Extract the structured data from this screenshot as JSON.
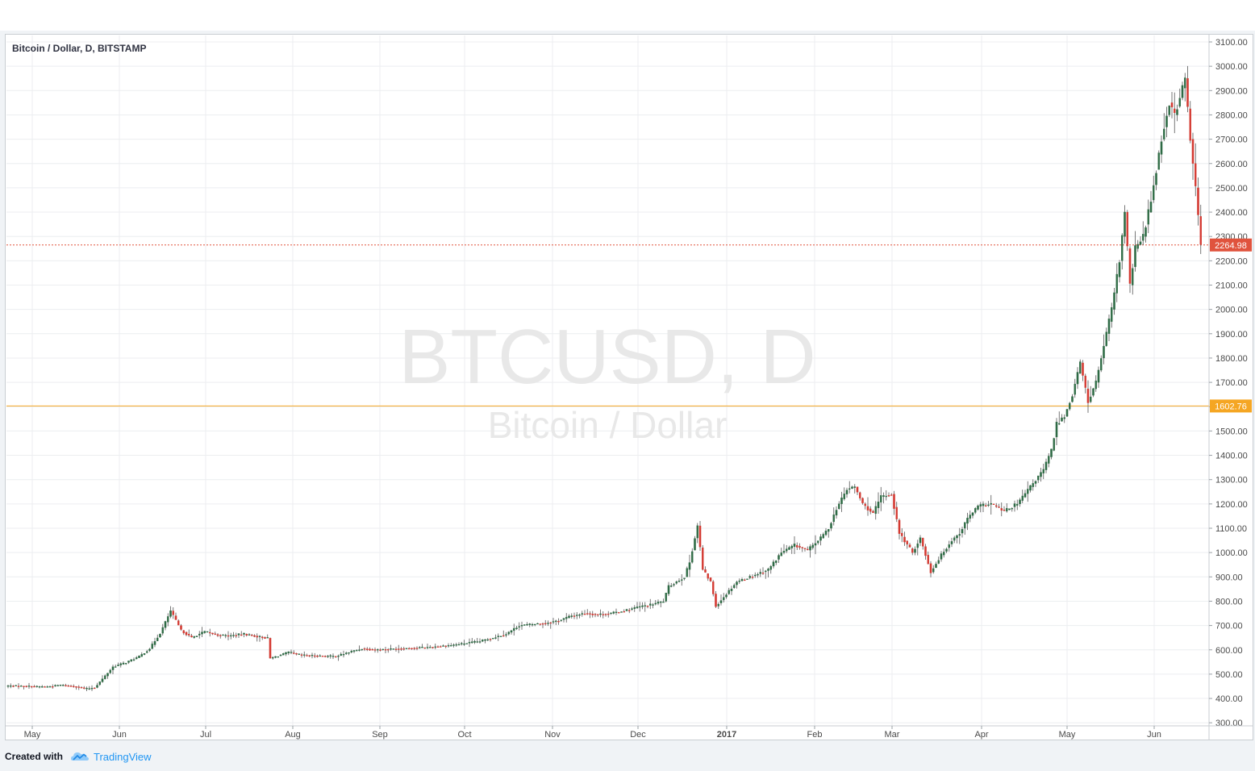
{
  "header": {
    "symbol_label": "Bitcoin / Dollar, D, BITSTAMP"
  },
  "watermark": {
    "ticker": "BTCUSD, D",
    "name": "Bitcoin / Dollar"
  },
  "footer": {
    "created_with": "Created with",
    "brand": "TradingView"
  },
  "colors": {
    "up": "#2f6b45",
    "down": "#d43a32",
    "last_price_line": "#e0533d",
    "level_line": "#f5a623",
    "grid": "#eceef0",
    "brand_blue": "#2196f3"
  },
  "icons": {
    "brand_logo": "tradingview-cloud-icon"
  },
  "chart_data": {
    "type": "candlestick",
    "timeframe": "D",
    "ylim": [
      300,
      3100
    ],
    "y_ticks": [
      "3100.00",
      "3000.00",
      "2900.00",
      "2800.00",
      "2700.00",
      "2600.00",
      "2500.00",
      "2400.00",
      "2300.00",
      "2200.00",
      "2100.00",
      "2000.00",
      "1900.00",
      "1800.00",
      "1700.00",
      "1600.00",
      "1500.00",
      "1400.00",
      "1300.00",
      "1200.00",
      "1100.00",
      "1000.00",
      "900.00",
      "800.00",
      "700.00",
      "600.00",
      "500.00",
      "400.00",
      "300.00"
    ],
    "x_ticks": [
      {
        "label": "May",
        "bold": false
      },
      {
        "label": "Jun",
        "bold": false
      },
      {
        "label": "Jul",
        "bold": false
      },
      {
        "label": "Aug",
        "bold": false
      },
      {
        "label": "Sep",
        "bold": false
      },
      {
        "label": "Oct",
        "bold": false
      },
      {
        "label": "Nov",
        "bold": false
      },
      {
        "label": "Dec",
        "bold": false
      },
      {
        "label": "2017",
        "bold": true
      },
      {
        "label": "Feb",
        "bold": false
      },
      {
        "label": "Mar",
        "bold": false
      },
      {
        "label": "Apr",
        "bold": false
      },
      {
        "label": "May",
        "bold": false
      },
      {
        "label": "Jun",
        "bold": false
      }
    ],
    "price_lines": [
      {
        "value": 2264.98,
        "label": "2264.98",
        "style": "dotted",
        "role": "last-price"
      },
      {
        "value": 1602.76,
        "label": "1602.76",
        "style": "solid",
        "role": "horizontal-level"
      }
    ],
    "close_anchors": [
      [
        0,
        452
      ],
      [
        8,
        450
      ],
      [
        15,
        448
      ],
      [
        20,
        455
      ],
      [
        26,
        448
      ],
      [
        30,
        440
      ],
      [
        33,
        445
      ],
      [
        36,
        480
      ],
      [
        40,
        530
      ],
      [
        45,
        548
      ],
      [
        50,
        572
      ],
      [
        54,
        605
      ],
      [
        58,
        668
      ],
      [
        62,
        760
      ],
      [
        66,
        680
      ],
      [
        70,
        650
      ],
      [
        75,
        675
      ],
      [
        80,
        660
      ],
      [
        85,
        658
      ],
      [
        90,
        665
      ],
      [
        95,
        655
      ],
      [
        99,
        648
      ],
      [
        100,
        565
      ],
      [
        103,
        575
      ],
      [
        107,
        590
      ],
      [
        112,
        578
      ],
      [
        118,
        575
      ],
      [
        125,
        573
      ],
      [
        130,
        590
      ],
      [
        135,
        605
      ],
      [
        140,
        600
      ],
      [
        150,
        605
      ],
      [
        160,
        610
      ],
      [
        170,
        620
      ],
      [
        180,
        635
      ],
      [
        190,
        665
      ],
      [
        195,
        700
      ],
      [
        200,
        705
      ],
      [
        205,
        710
      ],
      [
        210,
        720
      ],
      [
        215,
        740
      ],
      [
        220,
        750
      ],
      [
        225,
        745
      ],
      [
        230,
        750
      ],
      [
        235,
        760
      ],
      [
        240,
        775
      ],
      [
        245,
        785
      ],
      [
        250,
        800
      ],
      [
        252,
        860
      ],
      [
        255,
        880
      ],
      [
        258,
        900
      ],
      [
        260,
        960
      ],
      [
        263,
        1110
      ],
      [
        265,
        930
      ],
      [
        268,
        880
      ],
      [
        270,
        780
      ],
      [
        274,
        830
      ],
      [
        278,
        880
      ],
      [
        283,
        900
      ],
      [
        290,
        930
      ],
      [
        295,
        1000
      ],
      [
        300,
        1030
      ],
      [
        305,
        1010
      ],
      [
        310,
        1060
      ],
      [
        313,
        1100
      ],
      [
        316,
        1180
      ],
      [
        320,
        1260
      ],
      [
        323,
        1270
      ],
      [
        326,
        1200
      ],
      [
        330,
        1160
      ],
      [
        333,
        1230
      ],
      [
        337,
        1240
      ],
      [
        340,
        1080
      ],
      [
        345,
        1000
      ],
      [
        348,
        1060
      ],
      [
        352,
        920
      ],
      [
        356,
        990
      ],
      [
        360,
        1050
      ],
      [
        363,
        1080
      ],
      [
        366,
        1140
      ],
      [
        370,
        1190
      ],
      [
        375,
        1200
      ],
      [
        380,
        1170
      ],
      [
        385,
        1200
      ],
      [
        390,
        1270
      ],
      [
        395,
        1340
      ],
      [
        398,
        1420
      ],
      [
        400,
        1530
      ],
      [
        403,
        1560
      ],
      [
        406,
        1650
      ],
      [
        409,
        1780
      ],
      [
        412,
        1620
      ],
      [
        415,
        1700
      ],
      [
        418,
        1850
      ],
      [
        421,
        2000
      ],
      [
        424,
        2200
      ],
      [
        426,
        2400
      ],
      [
        428,
        2100
      ],
      [
        430,
        2250
      ],
      [
        433,
        2300
      ],
      [
        436,
        2450
      ],
      [
        440,
        2700
      ],
      [
        443,
        2850
      ],
      [
        445,
        2800
      ],
      [
        447,
        2870
      ],
      [
        449,
        2950
      ],
      [
        451,
        2700
      ],
      [
        453,
        2500
      ],
      [
        455,
        2264.98
      ]
    ]
  }
}
